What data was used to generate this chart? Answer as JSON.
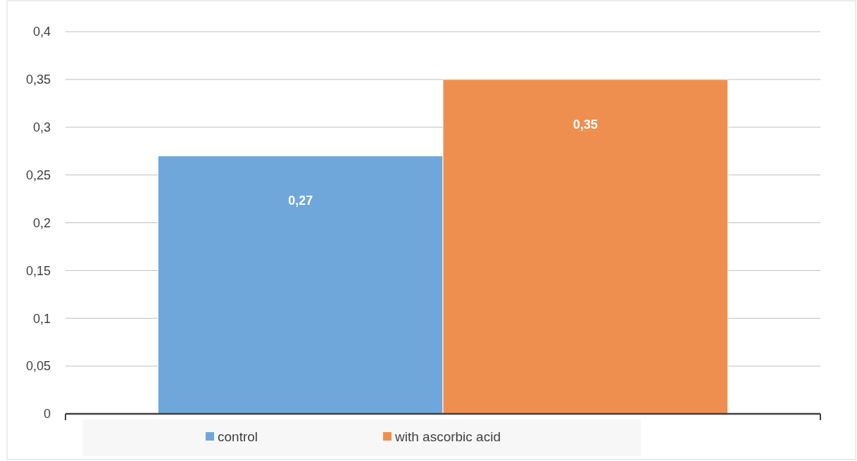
{
  "chart_data": {
    "type": "bar",
    "categories": [
      null
    ],
    "series": [
      {
        "name": "control",
        "color": "#70a7da",
        "values": [
          0.27
        ],
        "value_labels": [
          "0,27"
        ]
      },
      {
        "name": "with ascorbic acid",
        "color": "#ef8f4f",
        "values": [
          0.35
        ],
        "value_labels": [
          "0,35"
        ]
      }
    ],
    "ylim": [
      0,
      0.4
    ],
    "yticks": [
      0,
      {
        "value": 0.05,
        "label": "0,05"
      },
      {
        "value": 0.1,
        "label": "0,1"
      },
      {
        "value": 0.15,
        "label": "0,15"
      },
      {
        "value": 0.2,
        "label": "0,2"
      },
      {
        "value": 0.25,
        "label": "0,25"
      },
      {
        "value": 0.3,
        "label": "0,3"
      },
      {
        "value": 0.35,
        "label": "0,35"
      },
      {
        "value": 0.4,
        "label": "0,4"
      }
    ],
    "grid": "y",
    "legend": "bottom"
  }
}
